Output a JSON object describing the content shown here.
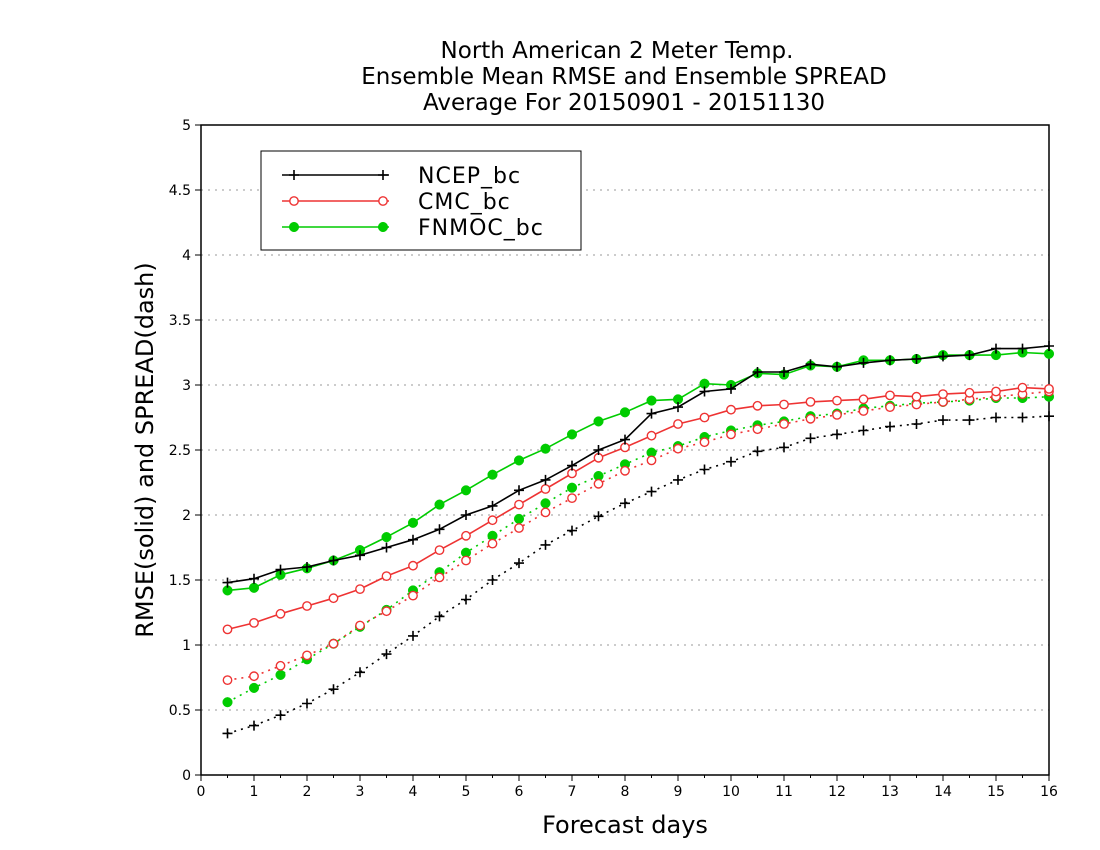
{
  "chart_data": {
    "type": "line",
    "title_lines": [
      "North American 2 Meter Temp.",
      "Ensemble Mean RMSE and Ensemble SPREAD",
      "Average For 20150901 - 20151130"
    ],
    "xlabel": "Forecast days",
    "ylabel": "RMSE(solid) and SPREAD(dash)",
    "xlim": [
      0,
      16
    ],
    "ylim": [
      0,
      5
    ],
    "xticks": [
      0,
      1,
      2,
      3,
      4,
      5,
      6,
      7,
      8,
      9,
      10,
      11,
      12,
      13,
      14,
      15,
      16
    ],
    "yticks": [
      0,
      0.5,
      1,
      1.5,
      2,
      2.5,
      3,
      3.5,
      4,
      4.5,
      5
    ],
    "ytick_labels": [
      "0",
      "0.5",
      "1",
      "1.5",
      "2",
      "2.5",
      "3",
      "3.5",
      "4",
      "4.5",
      "5"
    ],
    "grid": "horizontal dotted",
    "legend_position": "upper-left",
    "x": [
      0.5,
      1,
      1.5,
      2,
      2.5,
      3,
      3.5,
      4,
      4.5,
      5,
      5.5,
      6,
      6.5,
      7,
      7.5,
      8,
      8.5,
      9,
      9.5,
      10,
      10.5,
      11,
      11.5,
      12,
      12.5,
      13,
      13.5,
      14,
      14.5,
      15,
      15.5,
      16
    ],
    "series": [
      {
        "name": "NCEP_bc",
        "color": "#000000",
        "marker": "plus",
        "rmse": [
          1.48,
          1.51,
          1.58,
          1.6,
          1.65,
          1.69,
          1.75,
          1.81,
          1.89,
          2.0,
          2.07,
          2.19,
          2.27,
          2.38,
          2.5,
          2.58,
          2.78,
          2.83,
          2.95,
          2.97,
          3.1,
          3.1,
          3.16,
          3.14,
          3.17,
          3.19,
          3.2,
          3.22,
          3.23,
          3.28,
          3.28,
          3.3
        ],
        "spread": [
          0.32,
          0.38,
          0.46,
          0.55,
          0.66,
          0.79,
          0.93,
          1.07,
          1.22,
          1.35,
          1.5,
          1.63,
          1.77,
          1.88,
          1.99,
          2.09,
          2.18,
          2.27,
          2.35,
          2.41,
          2.49,
          2.52,
          2.59,
          2.62,
          2.65,
          2.68,
          2.7,
          2.73,
          2.73,
          2.75,
          2.75,
          2.76
        ]
      },
      {
        "name": "CMC_bc",
        "color": "#ee3333",
        "marker": "open-circle",
        "rmse": [
          1.12,
          1.17,
          1.24,
          1.3,
          1.36,
          1.43,
          1.53,
          1.61,
          1.73,
          1.84,
          1.96,
          2.08,
          2.2,
          2.32,
          2.44,
          2.52,
          2.61,
          2.7,
          2.75,
          2.81,
          2.84,
          2.85,
          2.87,
          2.88,
          2.89,
          2.92,
          2.91,
          2.93,
          2.94,
          2.95,
          2.98,
          2.97
        ],
        "spread": [
          0.73,
          0.76,
          0.84,
          0.92,
          1.01,
          1.15,
          1.26,
          1.38,
          1.52,
          1.65,
          1.78,
          1.9,
          2.02,
          2.13,
          2.24,
          2.34,
          2.42,
          2.51,
          2.56,
          2.62,
          2.66,
          2.7,
          2.74,
          2.77,
          2.8,
          2.83,
          2.85,
          2.87,
          2.89,
          2.91,
          2.93,
          2.95
        ]
      },
      {
        "name": "FNMOC_bc",
        "color": "#00cc00",
        "marker": "filled-circle",
        "rmse": [
          1.42,
          1.44,
          1.54,
          1.59,
          1.65,
          1.73,
          1.83,
          1.94,
          2.08,
          2.19,
          2.31,
          2.42,
          2.51,
          2.62,
          2.72,
          2.79,
          2.88,
          2.89,
          3.01,
          3.0,
          3.09,
          3.08,
          3.15,
          3.14,
          3.19,
          3.19,
          3.2,
          3.23,
          3.23,
          3.23,
          3.25,
          3.24
        ],
        "spread": [
          0.56,
          0.67,
          0.77,
          0.89,
          1.01,
          1.14,
          1.27,
          1.42,
          1.56,
          1.71,
          1.84,
          1.97,
          2.09,
          2.21,
          2.3,
          2.39,
          2.48,
          2.53,
          2.6,
          2.65,
          2.69,
          2.72,
          2.76,
          2.78,
          2.82,
          2.84,
          2.86,
          2.87,
          2.88,
          2.9,
          2.9,
          2.91
        ]
      }
    ]
  }
}
